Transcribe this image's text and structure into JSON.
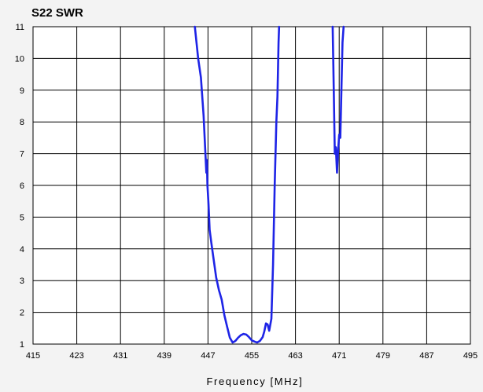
{
  "chart_data": {
    "type": "line",
    "title": "S22 SWR",
    "xlabel": "Frequency [MHz]",
    "ylabel": "",
    "xlim": [
      415,
      495
    ],
    "ylim": [
      1,
      11
    ],
    "x_ticks": [
      415,
      423,
      431,
      439,
      447,
      455,
      463,
      471,
      479,
      487,
      495
    ],
    "x_tick_labels": [
      "415",
      "423",
      "431",
      "439",
      "447",
      "455",
      "463",
      "471",
      "479",
      "487",
      "495"
    ],
    "y_ticks": [
      1,
      2,
      3,
      4,
      5,
      6,
      7,
      8,
      9,
      10,
      11
    ],
    "y_tick_labels": [
      "1",
      "2",
      "3",
      "4",
      "5",
      "6",
      "7",
      "8",
      "9",
      "10",
      "11"
    ],
    "grid": true,
    "colors": {
      "line": "#1e24e6",
      "grid": "#000000",
      "plot_bg": "#ffffff",
      "page_bg": "#f3f3f3"
    },
    "series": [
      {
        "points": [
          [
            444.6,
            11.0
          ],
          [
            445.2,
            10.0
          ],
          [
            445.7,
            9.4
          ],
          [
            446.2,
            8.2
          ],
          [
            446.7,
            6.4
          ],
          [
            446.8,
            6.8
          ],
          [
            446.9,
            6.0
          ],
          [
            447.1,
            5.4
          ],
          [
            447.3,
            4.6
          ],
          [
            447.6,
            4.2
          ],
          [
            448.0,
            3.7
          ],
          [
            448.5,
            3.1
          ],
          [
            449.0,
            2.7
          ],
          [
            449.5,
            2.4
          ],
          [
            450.0,
            1.9
          ],
          [
            450.5,
            1.55
          ],
          [
            451.0,
            1.2
          ],
          [
            451.5,
            1.05
          ],
          [
            452.0,
            1.1
          ],
          [
            452.5,
            1.2
          ],
          [
            453.0,
            1.28
          ],
          [
            453.5,
            1.32
          ],
          [
            454.0,
            1.3
          ],
          [
            454.5,
            1.22
          ],
          [
            455.0,
            1.12
          ],
          [
            455.5,
            1.08
          ],
          [
            456.0,
            1.05
          ],
          [
            456.5,
            1.1
          ],
          [
            457.0,
            1.22
          ],
          [
            457.3,
            1.4
          ],
          [
            457.6,
            1.65
          ],
          [
            457.9,
            1.62
          ],
          [
            458.2,
            1.42
          ],
          [
            458.6,
            1.8
          ],
          [
            458.9,
            3.5
          ],
          [
            459.2,
            6.0
          ],
          [
            459.5,
            8.0
          ],
          [
            459.7,
            8.8
          ],
          [
            459.9,
            10.5
          ],
          [
            460.0,
            11.0
          ]
        ]
      },
      {
        "points": [
          [
            469.8,
            11.0
          ],
          [
            470.0,
            9.0
          ],
          [
            470.2,
            7.0
          ],
          [
            470.4,
            7.2
          ],
          [
            470.6,
            6.4
          ],
          [
            470.8,
            7.1
          ],
          [
            471.0,
            7.6
          ],
          [
            471.2,
            7.5
          ],
          [
            471.4,
            9.0
          ],
          [
            471.6,
            10.5
          ],
          [
            471.8,
            11.0
          ]
        ]
      }
    ]
  }
}
